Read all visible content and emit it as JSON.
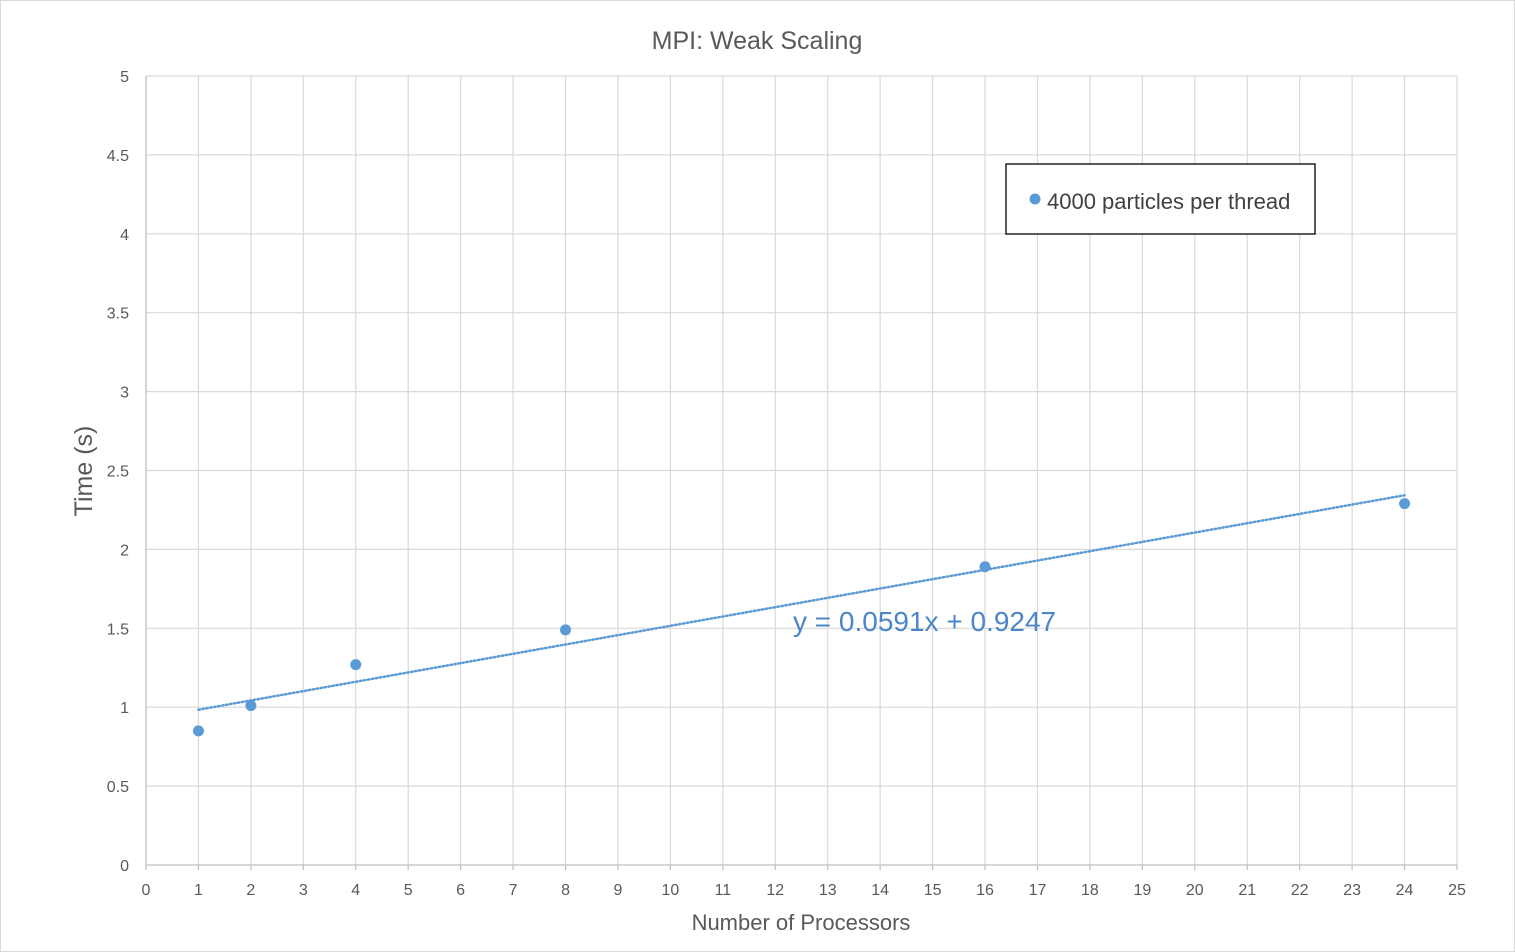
{
  "chart_data": {
    "type": "scatter",
    "title": "MPI: Weak Scaling",
    "xlabel": "Number of Processors",
    "ylabel": "Time (s)",
    "xlim": [
      0,
      25
    ],
    "ylim": [
      0,
      5
    ],
    "x_ticks": [
      "0",
      "1",
      "2",
      "3",
      "4",
      "5",
      "6",
      "7",
      "8",
      "9",
      "10",
      "11",
      "12",
      "13",
      "14",
      "15",
      "16",
      "17",
      "18",
      "19",
      "20",
      "21",
      "22",
      "23",
      "24",
      "25"
    ],
    "y_ticks": [
      "0",
      "0.5",
      "1",
      "1.5",
      "2",
      "2.5",
      "3",
      "3.5",
      "4",
      "4.5",
      "5"
    ],
    "grid": true,
    "legend_position": "top-right",
    "series": [
      {
        "name": "4000 particles per thread",
        "color": "#5b9bd5",
        "x": [
          1,
          2,
          4,
          8,
          16,
          24
        ],
        "y": [
          0.85,
          1.01,
          1.27,
          1.49,
          1.89,
          2.29
        ]
      }
    ],
    "trendline": {
      "type": "linear",
      "slope": 0.0591,
      "intercept": 0.9247,
      "x_range": [
        1,
        24
      ],
      "color": "#5b9bd5",
      "equation": "y = 0.0591x + 0.9247"
    }
  }
}
